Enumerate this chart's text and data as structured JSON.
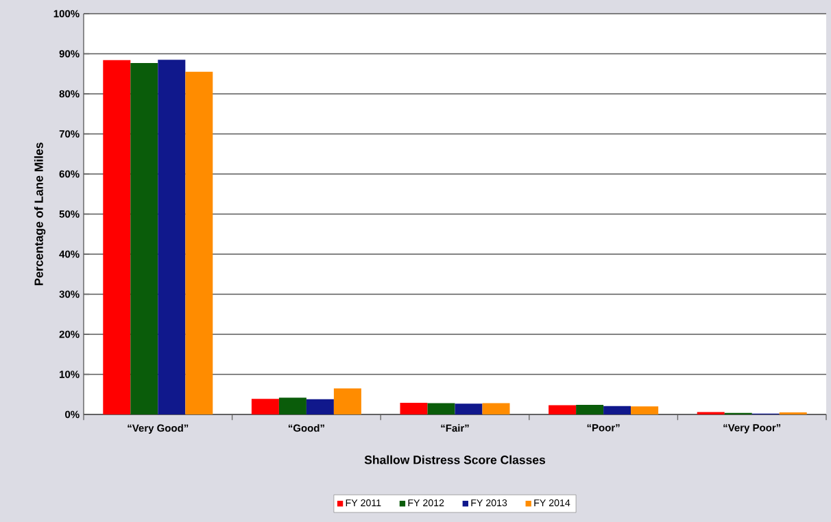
{
  "chart_data": {
    "type": "bar",
    "xlabel": "Shallow Distress Score Classes",
    "ylabel": "Percentage of Lane Miles",
    "categories": [
      "“Very Good”",
      "“Good”",
      "“Fair”",
      "“Poor”",
      "“Very Poor”"
    ],
    "series": [
      {
        "name": "FY 2011",
        "color": "#ff0000",
        "values": [
          88.4,
          3.9,
          2.9,
          2.3,
          0.6
        ]
      },
      {
        "name": "FY 2012",
        "color": "#0a5c0a",
        "values": [
          87.7,
          4.2,
          2.8,
          2.4,
          0.4
        ]
      },
      {
        "name": "FY 2013",
        "color": "#10188c",
        "values": [
          88.5,
          3.8,
          2.7,
          2.1,
          0.2
        ]
      },
      {
        "name": "FY 2014",
        "color": "#ff8c00",
        "values": [
          85.5,
          6.5,
          2.8,
          2.0,
          0.5
        ]
      }
    ],
    "ylim": [
      0,
      100
    ],
    "yticks": [
      {
        "value": 0,
        "label": "0%"
      },
      {
        "value": 10,
        "label": "10%"
      },
      {
        "value": 20,
        "label": "20%"
      },
      {
        "value": 30,
        "label": "30%"
      },
      {
        "value": 40,
        "label": "40%"
      },
      {
        "value": 50,
        "label": "50%"
      },
      {
        "value": 60,
        "label": "60%"
      },
      {
        "value": 70,
        "label": "70%"
      },
      {
        "value": 80,
        "label": "80%"
      },
      {
        "value": 90,
        "label": "90%"
      },
      {
        "value": 100,
        "label": "100%"
      }
    ],
    "grid": "y",
    "legend": "bottom"
  }
}
